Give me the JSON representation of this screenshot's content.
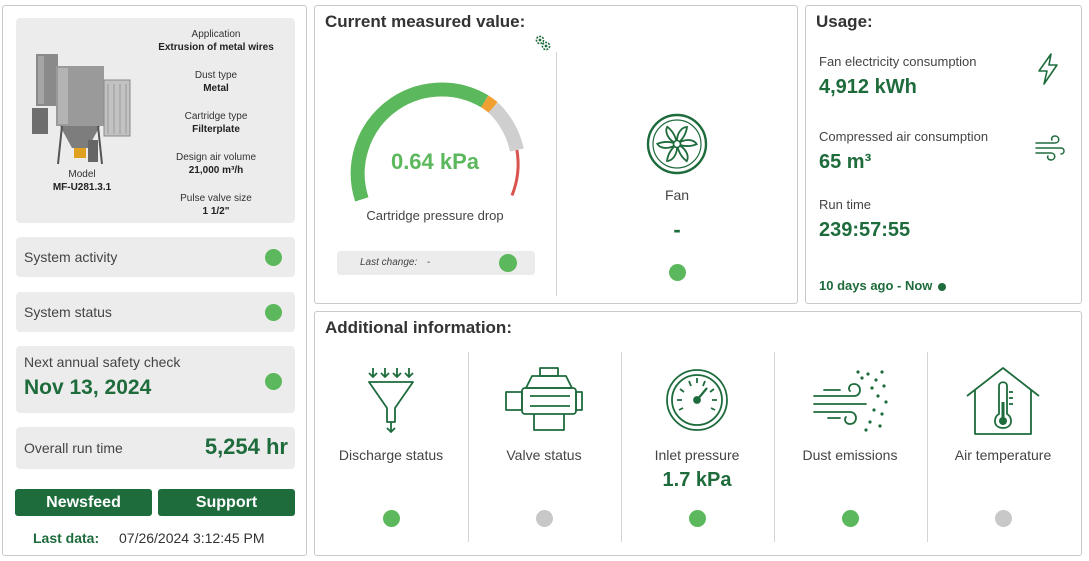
{
  "machine": {
    "model_label": "Model",
    "model_value": "MF-U281.3.1",
    "specs": [
      {
        "label": "Application",
        "value": "Extrusion of metal wires"
      },
      {
        "label": "Dust type",
        "value": "Metal"
      },
      {
        "label": "Cartridge type",
        "value": "Filterplate"
      },
      {
        "label": "Design air volume",
        "value": "21,000 m³/h"
      },
      {
        "label": "Pulse valve size",
        "value": "1 1/2\""
      }
    ]
  },
  "system_activity": {
    "label": "System activity",
    "status": "green"
  },
  "system_status": {
    "label": "System status",
    "status": "green"
  },
  "safety_check": {
    "label": "Next annual safety check",
    "date": "Nov 13, 2024",
    "status": "green"
  },
  "overall_run_time": {
    "label": "Overall run time",
    "value": "5,254 hr"
  },
  "buttons": {
    "newsfeed": "Newsfeed",
    "support": "Support"
  },
  "last_data": {
    "label": "Last data:",
    "value": "07/26/2024 3:12:45 PM"
  },
  "current": {
    "title": "Current measured value:",
    "settings_icon": "gears-icon",
    "gauge": {
      "value": "0.64 kPa",
      "fill_fraction": 0.6,
      "caption": "Cartridge pressure drop"
    },
    "last_change_label": "Last change:",
    "last_change_value": "-",
    "last_change_status": "green",
    "fan": {
      "label": "Fan",
      "value": "-",
      "status": "green"
    }
  },
  "usage": {
    "title": "Usage:",
    "fan_electricity": {
      "label": "Fan electricity consumption",
      "value": "4,912 kWh",
      "icon": "lightning-icon"
    },
    "compressed_air": {
      "label": "Compressed air consumption",
      "value": "65 m³",
      "icon": "wind-icon"
    },
    "run_time": {
      "label": "Run time",
      "value": "239:57:55"
    },
    "range": "10 days ago - Now"
  },
  "additional": {
    "title": "Additional information:",
    "items": [
      {
        "label": "Discharge status",
        "value": "",
        "status": "green",
        "icon": "funnel-icon"
      },
      {
        "label": "Valve status",
        "value": "",
        "status": "gray",
        "icon": "valve-icon"
      },
      {
        "label": "Inlet pressure",
        "value": "1.7 kPa",
        "status": "green",
        "icon": "pressure-gauge-icon"
      },
      {
        "label": "Dust emissions",
        "value": "",
        "status": "green",
        "icon": "dust-emissions-icon"
      },
      {
        "label": "Air temperature",
        "value": "",
        "status": "gray",
        "icon": "thermometer-house-icon"
      }
    ]
  },
  "colors": {
    "brand_green": "#1e6b3c",
    "status_green": "#5cb85c",
    "status_gray": "#c8c8c8",
    "gauge_warn": "#f0a030",
    "gauge_danger": "#d9534f"
  }
}
